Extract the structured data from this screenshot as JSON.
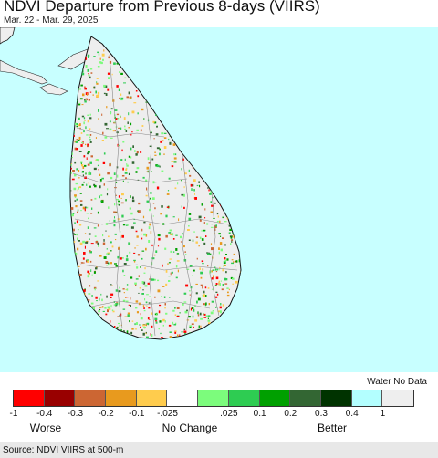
{
  "header": {
    "title": "NDVI Departure from Previous 8-days (VIIRS)",
    "subtitle": "Mar. 22 - Mar. 29, 2025"
  },
  "map": {
    "region": "Sri Lanka",
    "ocean_color": "#c8ffff",
    "land_base_color": "#eeeeee"
  },
  "legend": {
    "water_label": "Water No Data",
    "colors": [
      "#ff0000",
      "#990000",
      "#cc6633",
      "#e89a1e",
      "#ffcc4d",
      "#ffffff",
      "#7cfc7c",
      "#2ecc52",
      "#00a000",
      "#336633",
      "#003300",
      "#b3ffff",
      "#eeeeee"
    ],
    "ticks": [
      "-1",
      "-0.4",
      "-0.3",
      "-0.2",
      "-0.1",
      "-.025",
      ".025",
      "0.1",
      "0.2",
      "0.3",
      "0.4",
      "1"
    ],
    "worse": "Worse",
    "no_change": "No Change",
    "better": "Better"
  },
  "footer": {
    "source": "Source: NDVI VIIRS at 500-m"
  }
}
